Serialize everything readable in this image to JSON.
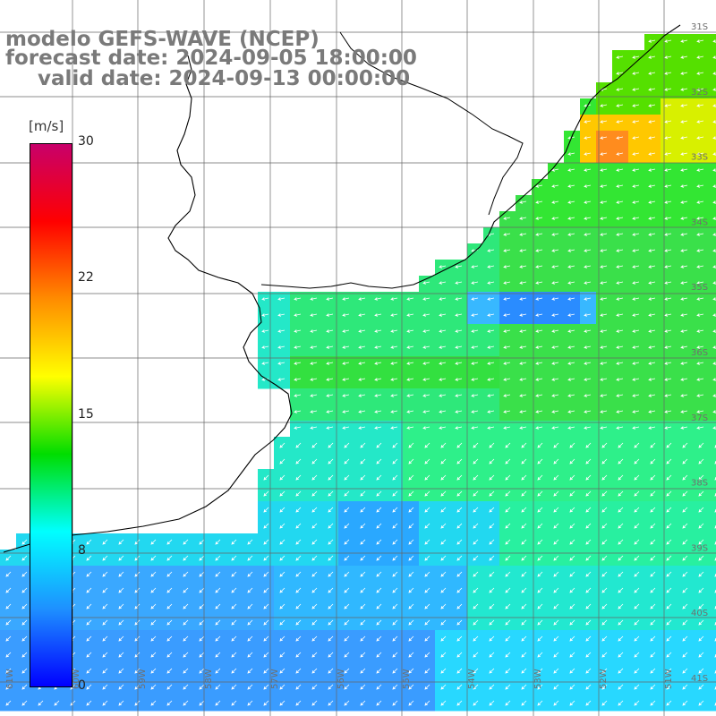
{
  "titles": {
    "line1": "modelo GEFS-WAVE (NCEP)",
    "line2": "forecast date: 2024-09-05 18:00:00",
    "line3": "valid date: 2024-09-13 00:00:00"
  },
  "colorbar": {
    "unit": "[m/s]",
    "labels": [
      "30",
      "22",
      "15",
      "8",
      "0"
    ],
    "gradient_colors": [
      "#c8006a",
      "#ff0000",
      "#ff8c00",
      "#ffff00",
      "#00dd00",
      "#00ffff",
      "#1e90ff",
      "#0000ff"
    ]
  },
  "lat_labels": [
    "31S",
    "32S",
    "33S",
    "34S",
    "35S",
    "36S",
    "37S",
    "38S",
    "39S",
    "40S",
    "41S"
  ],
  "lon_labels": [
    "61W",
    "60W",
    "59W",
    "58W",
    "57W",
    "56W",
    "55W",
    "54W",
    "53W",
    "52W",
    "51W"
  ],
  "field_colors": {
    "land": "#ffffff",
    "coast": "#000000",
    "grid": "#666666",
    "arrows": "#ffffff"
  }
}
